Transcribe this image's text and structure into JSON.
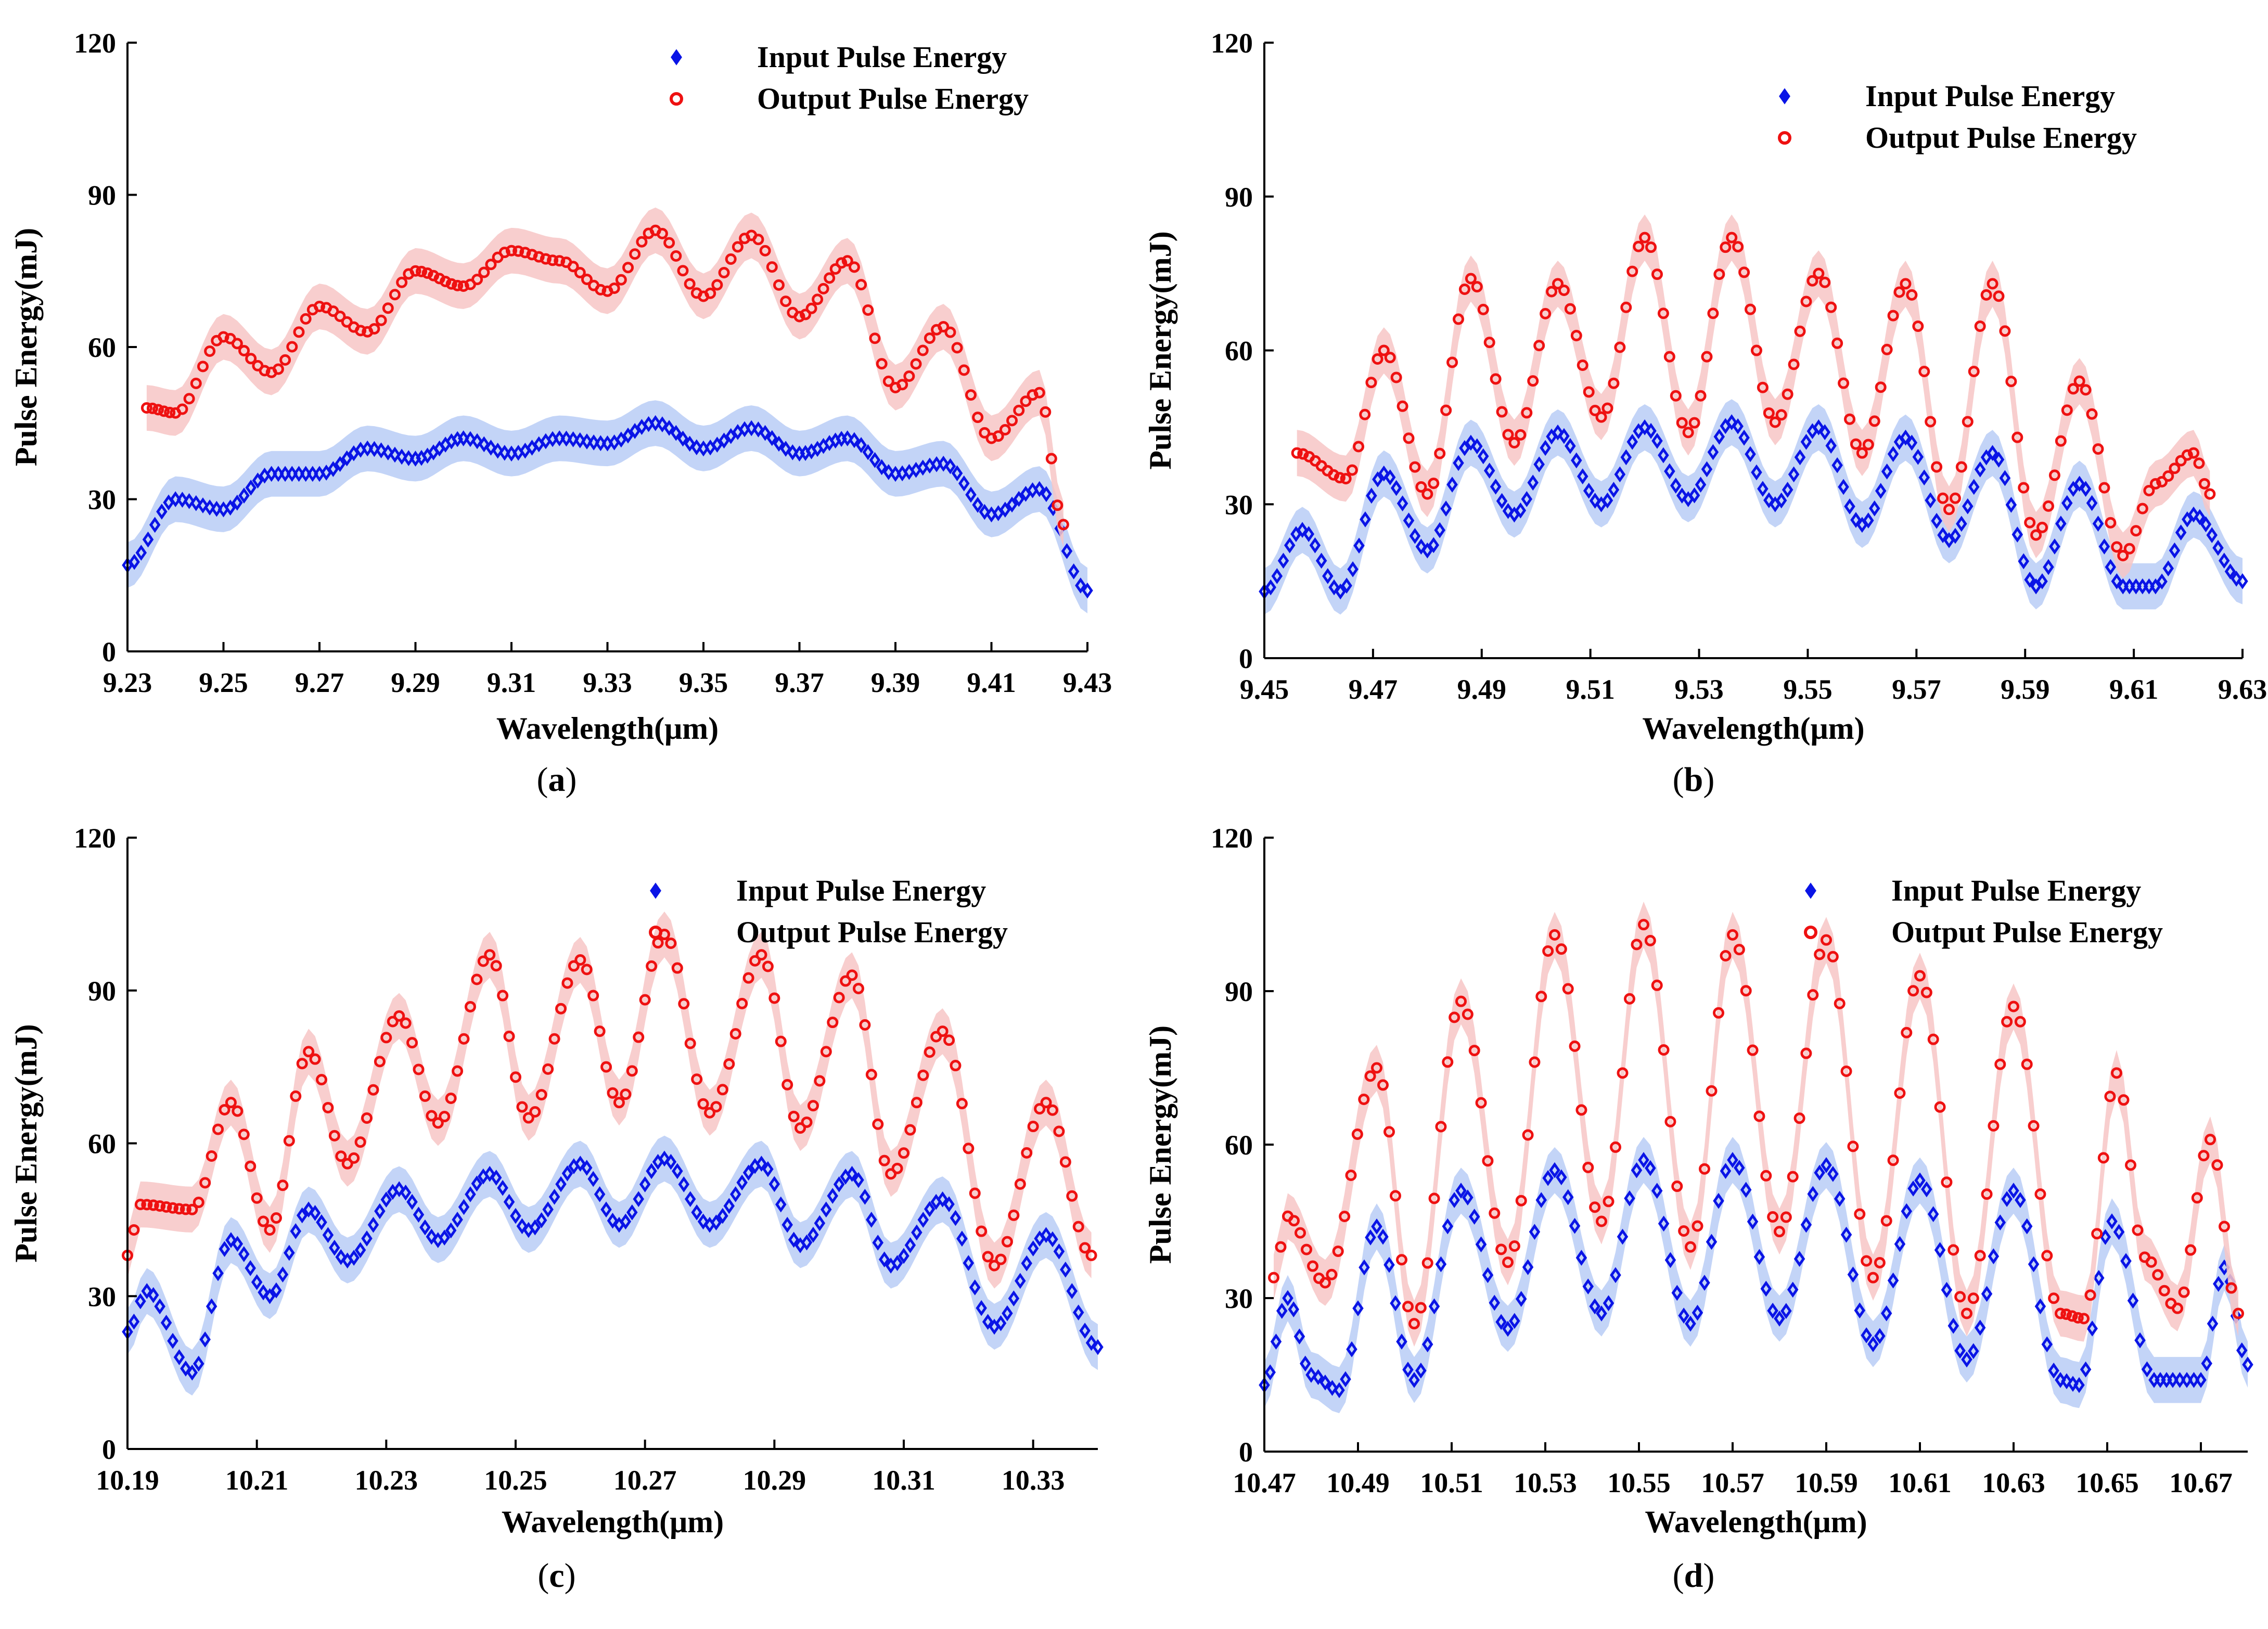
{
  "colors": {
    "input": "#0a14e6",
    "input_band": "#b9ccf6",
    "output": "#ee1111",
    "output_band": "#f7c6c6"
  },
  "chart_data": [
    {
      "id": "a",
      "type": "scatter",
      "panel_label": "a",
      "xlabel": "Wavelength(μm)",
      "ylabel": "Pulse Energy(mJ)",
      "xlim": [
        9.23,
        9.43
      ],
      "ylim": [
        0,
        120
      ],
      "xticks": [
        "9.23",
        "9.25",
        "9.27",
        "9.29",
        "9.31",
        "9.33",
        "9.35",
        "9.37",
        "9.39",
        "9.41",
        "9.43"
      ],
      "yticks": [
        "0",
        "30",
        "60",
        "90",
        "120"
      ],
      "legend": [
        "Input Pulse Energy",
        "Output Pulse Energy"
      ],
      "series": [
        {
          "name": "Input Pulse Energy",
          "x": [
            9.23,
            9.24,
            9.25,
            9.26,
            9.27,
            9.28,
            9.29,
            9.3,
            9.31,
            9.32,
            9.33,
            9.34,
            9.35,
            9.36,
            9.37,
            9.38,
            9.39,
            9.4,
            9.41,
            9.42,
            9.43
          ],
          "y": [
            17,
            30,
            28,
            35,
            35,
            40,
            38,
            42,
            39,
            42,
            41,
            45,
            40,
            44,
            39,
            42,
            35,
            37,
            27,
            32,
            12
          ]
        },
        {
          "name": "Output Pulse Energy",
          "x": [
            9.234,
            9.24,
            9.25,
            9.26,
            9.27,
            9.28,
            9.29,
            9.3,
            9.31,
            9.32,
            9.33,
            9.34,
            9.35,
            9.36,
            9.37,
            9.38,
            9.39,
            9.4,
            9.41,
            9.42,
            9.425
          ],
          "y": [
            48,
            47,
            62,
            55,
            68,
            63,
            75,
            72,
            79,
            77,
            71,
            83,
            70,
            82,
            66,
            77,
            52,
            64,
            42,
            51,
            25
          ]
        }
      ]
    },
    {
      "id": "b",
      "type": "scatter",
      "panel_label": "b",
      "xlabel": "Wavelength(μm)",
      "ylabel": "Pulse Energy(mJ)",
      "xlim": [
        9.45,
        9.63
      ],
      "ylim": [
        0,
        120
      ],
      "xticks": [
        "9.45",
        "9.47",
        "9.49",
        "9.51",
        "9.53",
        "9.55",
        "9.57",
        "9.59",
        "9.61",
        "9.63"
      ],
      "yticks": [
        "0",
        "30",
        "60",
        "90",
        "120"
      ],
      "legend": [
        "Input Pulse Energy",
        "Output Pulse Energy"
      ],
      "series": [
        {
          "name": "Input Pulse Energy",
          "x": [
            9.45,
            9.457,
            9.464,
            9.472,
            9.48,
            9.488,
            9.496,
            9.504,
            9.512,
            9.52,
            9.528,
            9.536,
            9.544,
            9.552,
            9.56,
            9.568,
            9.576,
            9.584,
            9.592,
            9.6,
            9.608,
            9.614,
            9.621,
            9.63
          ],
          "y": [
            13,
            25,
            13,
            36,
            21,
            42,
            28,
            44,
            30,
            45,
            31,
            46,
            30,
            45,
            26,
            43,
            23,
            40,
            14,
            34,
            14,
            14,
            28,
            15
          ]
        },
        {
          "name": "Output Pulse Energy",
          "x": [
            9.456,
            9.465,
            9.472,
            9.48,
            9.488,
            9.496,
            9.504,
            9.512,
            9.52,
            9.528,
            9.536,
            9.544,
            9.552,
            9.56,
            9.568,
            9.576,
            9.584,
            9.592,
            9.6,
            9.608,
            9.614,
            9.621,
            9.624
          ],
          "y": [
            40,
            35,
            60,
            32,
            74,
            42,
            73,
            47,
            82,
            44,
            82,
            46,
            75,
            40,
            73,
            29,
            73,
            24,
            54,
            20,
            34,
            40,
            32
          ]
        }
      ]
    },
    {
      "id": "c",
      "type": "scatter",
      "panel_label": "c",
      "xlabel": "Wavelength(μm)",
      "ylabel": "Pulse Energy(mJ)",
      "xlim": [
        10.19,
        10.34
      ],
      "ylim": [
        0,
        120
      ],
      "xticks": [
        "10.19",
        "10.21",
        "10.23",
        "10.25",
        "10.27",
        "10.29",
        "10.31",
        "10.33"
      ],
      "yticks": [
        "0",
        "30",
        "60",
        "90",
        "120"
      ],
      "legend": [
        "Input Pulse Energy",
        "Output Pulse Energy"
      ],
      "series": [
        {
          "name": "Input Pulse Energy",
          "x": [
            10.19,
            10.193,
            10.2,
            10.206,
            10.212,
            10.218,
            10.224,
            10.232,
            10.238,
            10.246,
            10.252,
            10.26,
            10.266,
            10.273,
            10.28,
            10.288,
            10.294,
            10.302,
            10.308,
            10.316,
            10.324,
            10.332,
            10.34
          ],
          "y": [
            23,
            31,
            15,
            41,
            30,
            47,
            37,
            51,
            41,
            54,
            43,
            56,
            44,
            57,
            44,
            56,
            40,
            54,
            36,
            49,
            24,
            42,
            20
          ]
        },
        {
          "name": "Output Pulse Energy",
          "x": [
            10.19,
            10.192,
            10.2,
            10.206,
            10.212,
            10.218,
            10.224,
            10.232,
            10.238,
            10.246,
            10.252,
            10.26,
            10.266,
            10.273,
            10.28,
            10.288,
            10.294,
            10.302,
            10.308,
            10.316,
            10.324,
            10.332,
            10.339
          ],
          "y": [
            38,
            48,
            47,
            68,
            43,
            78,
            56,
            85,
            64,
            97,
            65,
            96,
            68,
            101,
            66,
            97,
            63,
            93,
            54,
            82,
            36,
            68,
            38
          ]
        }
      ]
    },
    {
      "id": "d",
      "type": "scatter",
      "panel_label": "d",
      "xlabel": "Wavelength(μm)",
      "ylabel": "Pulse Energy(mJ)",
      "xlim": [
        10.47,
        10.68
      ],
      "ylim": [
        0,
        120
      ],
      "xticks": [
        "10.47",
        "10.49",
        "10.51",
        "10.53",
        "10.55",
        "10.57",
        "10.59",
        "10.61",
        "10.63",
        "10.65",
        "10.67"
      ],
      "yticks": [
        "0",
        "30",
        "60",
        "90",
        "120"
      ],
      "legend": [
        "Input Pulse Energy",
        "Output Pulse Energy"
      ],
      "series": [
        {
          "name": "Input Pulse Energy",
          "x": [
            10.47,
            10.475,
            10.48,
            10.486,
            10.494,
            10.502,
            10.512,
            10.522,
            10.532,
            10.542,
            10.551,
            10.561,
            10.57,
            10.58,
            10.59,
            10.6,
            10.61,
            10.62,
            10.63,
            10.64,
            10.644,
            10.651,
            10.66,
            10.664,
            10.67,
            10.675,
            10.68
          ],
          "y": [
            13,
            30,
            15,
            12,
            44,
            14,
            51,
            24,
            55,
            27,
            57,
            25,
            57,
            26,
            56,
            21,
            53,
            18,
            51,
            14,
            13,
            45,
            14,
            14,
            14,
            36,
            17
          ]
        },
        {
          "name": "Output Pulse Energy",
          "x": [
            10.472,
            10.475,
            10.483,
            10.494,
            10.502,
            10.512,
            10.522,
            10.532,
            10.542,
            10.551,
            10.561,
            10.57,
            10.58,
            10.59,
            10.6,
            10.61,
            10.62,
            10.63,
            10.64,
            10.645,
            10.652,
            10.658,
            10.665,
            10.672,
            10.678
          ],
          "y": [
            34,
            46,
            33,
            75,
            25,
            88,
            37,
            101,
            45,
            103,
            40,
            101,
            43,
            100,
            34,
            93,
            27,
            87,
            27,
            26,
            74,
            38,
            28,
            61,
            27
          ]
        }
      ]
    }
  ]
}
